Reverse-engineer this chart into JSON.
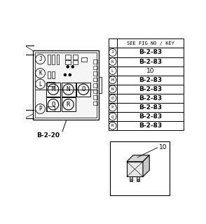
{
  "background_color": "#ffffff",
  "table_header": "SEE FIG NO / KEY",
  "table_rows": [
    {
      "label": "J",
      "value": "B-2-83"
    },
    {
      "label": "K",
      "value": "B-2-83"
    },
    {
      "label": "L",
      "value": "10"
    },
    {
      "label": "M",
      "value": "B-2-83"
    },
    {
      "label": "N",
      "value": "B-2-83"
    },
    {
      "label": "O",
      "value": "B-2-83"
    },
    {
      "label": "P",
      "value": "B-2-83"
    },
    {
      "label": "Q",
      "value": "B-2-83"
    },
    {
      "label": "R",
      "value": "B-2-83"
    }
  ],
  "figure_label": "B-2-20",
  "relay_label": "10",
  "fig_width": 2.94,
  "fig_height": 3.2
}
